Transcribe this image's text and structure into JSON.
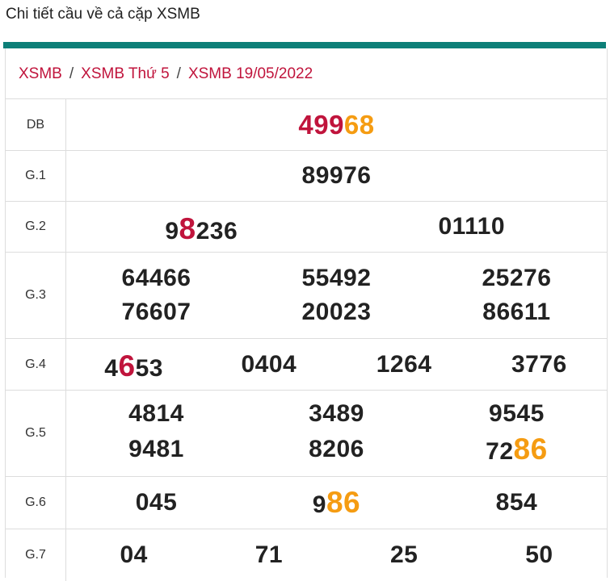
{
  "title": "Chi tiết cầu về cả cặp XSMB",
  "colors": {
    "accent_bar": "#0d7f78",
    "link": "#c0143c",
    "highlight_red": "#c0143c",
    "highlight_orange": "#f59c12"
  },
  "breadcrumb": {
    "items": [
      "XSMB",
      "XSMB Thứ 5",
      "XSMB 19/05/2022"
    ],
    "separator": "/"
  },
  "prizes": {
    "db": {
      "label": "DB",
      "n0": {
        "a": "499",
        "b": "68"
      }
    },
    "g1": {
      "label": "G.1",
      "n0": "89976"
    },
    "g2": {
      "label": "G.2",
      "n0": {
        "a": "9",
        "b": "8",
        "c": "236"
      },
      "n1": "01110"
    },
    "g3": {
      "label": "G.3",
      "n0": "64466",
      "n1": "55492",
      "n2": "25276",
      "n3": "76607",
      "n4": "20023",
      "n5": "86611"
    },
    "g4": {
      "label": "G.4",
      "n0": {
        "a": "4",
        "b": "6",
        "c": "53"
      },
      "n1": "0404",
      "n2": "1264",
      "n3": "3776"
    },
    "g5": {
      "label": "G.5",
      "n0": "4814",
      "n1": "3489",
      "n2": "9545",
      "n3": "9481",
      "n4": "8206",
      "n5": {
        "a": "72",
        "b": "86"
      }
    },
    "g6": {
      "label": "G.6",
      "n0": "045",
      "n1": {
        "a": "9",
        "b": "86"
      },
      "n2": "854"
    },
    "g7": {
      "label": "G.7",
      "n0": "04",
      "n1": "71",
      "n2": "25",
      "n3": "50"
    }
  }
}
